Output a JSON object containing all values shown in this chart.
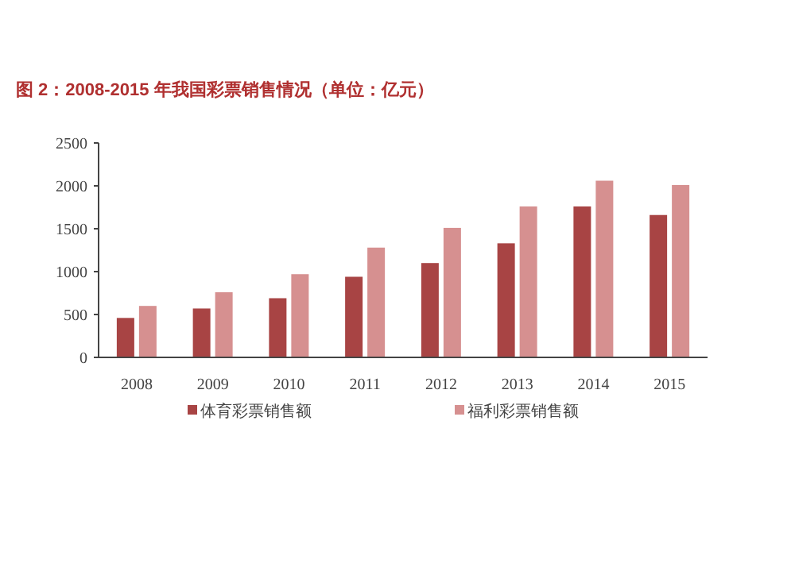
{
  "chart_data": {
    "type": "bar",
    "title": "图 2：2008-2015 年我国彩票销售情况（单位：亿元）",
    "categories": [
      "2008",
      "2009",
      "2010",
      "2011",
      "2012",
      "2013",
      "2014",
      "2015"
    ],
    "series": [
      {
        "name": "体育彩票销售额",
        "color": "#a84444",
        "values": [
          460,
          570,
          690,
          940,
          1100,
          1330,
          1760,
          1660
        ]
      },
      {
        "name": "福利彩票销售额",
        "color": "#d69090",
        "values": [
          600,
          760,
          970,
          1280,
          1510,
          1760,
          2060,
          2010
        ]
      }
    ],
    "ylim": [
      0,
      2500
    ],
    "yticks": [
      0,
      500,
      1000,
      1500,
      2000,
      2500
    ],
    "legend": "bottom"
  }
}
